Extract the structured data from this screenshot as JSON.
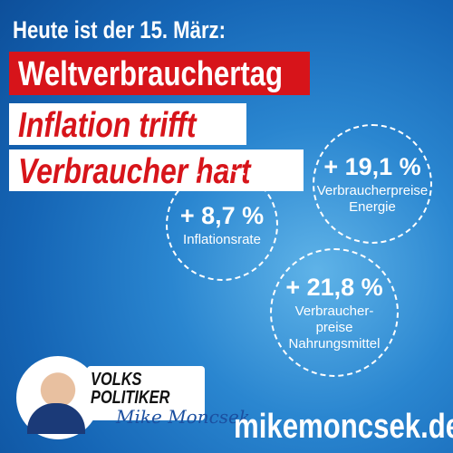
{
  "header": {
    "date_line": "Heute ist der 15. März:",
    "event": "Weltverbrauchertag",
    "headline": [
      "Inflation trifft",
      "Verbraucher hart"
    ]
  },
  "stats": [
    {
      "value": "+ 8,7 %",
      "label": [
        "Inflationsrate"
      ]
    },
    {
      "value": "+ 19,1 %",
      "label": [
        "Verbraucherpreise",
        "Energie"
      ]
    },
    {
      "value": "+ 21,8 %",
      "label": [
        "Verbraucher-",
        "preise",
        "Nahrungsmittel"
      ]
    }
  ],
  "logo": {
    "line1": "VOLKS",
    "line2": "POLITIKER",
    "signature": "Mike Moncsek"
  },
  "website": "mikemoncsek.de"
}
